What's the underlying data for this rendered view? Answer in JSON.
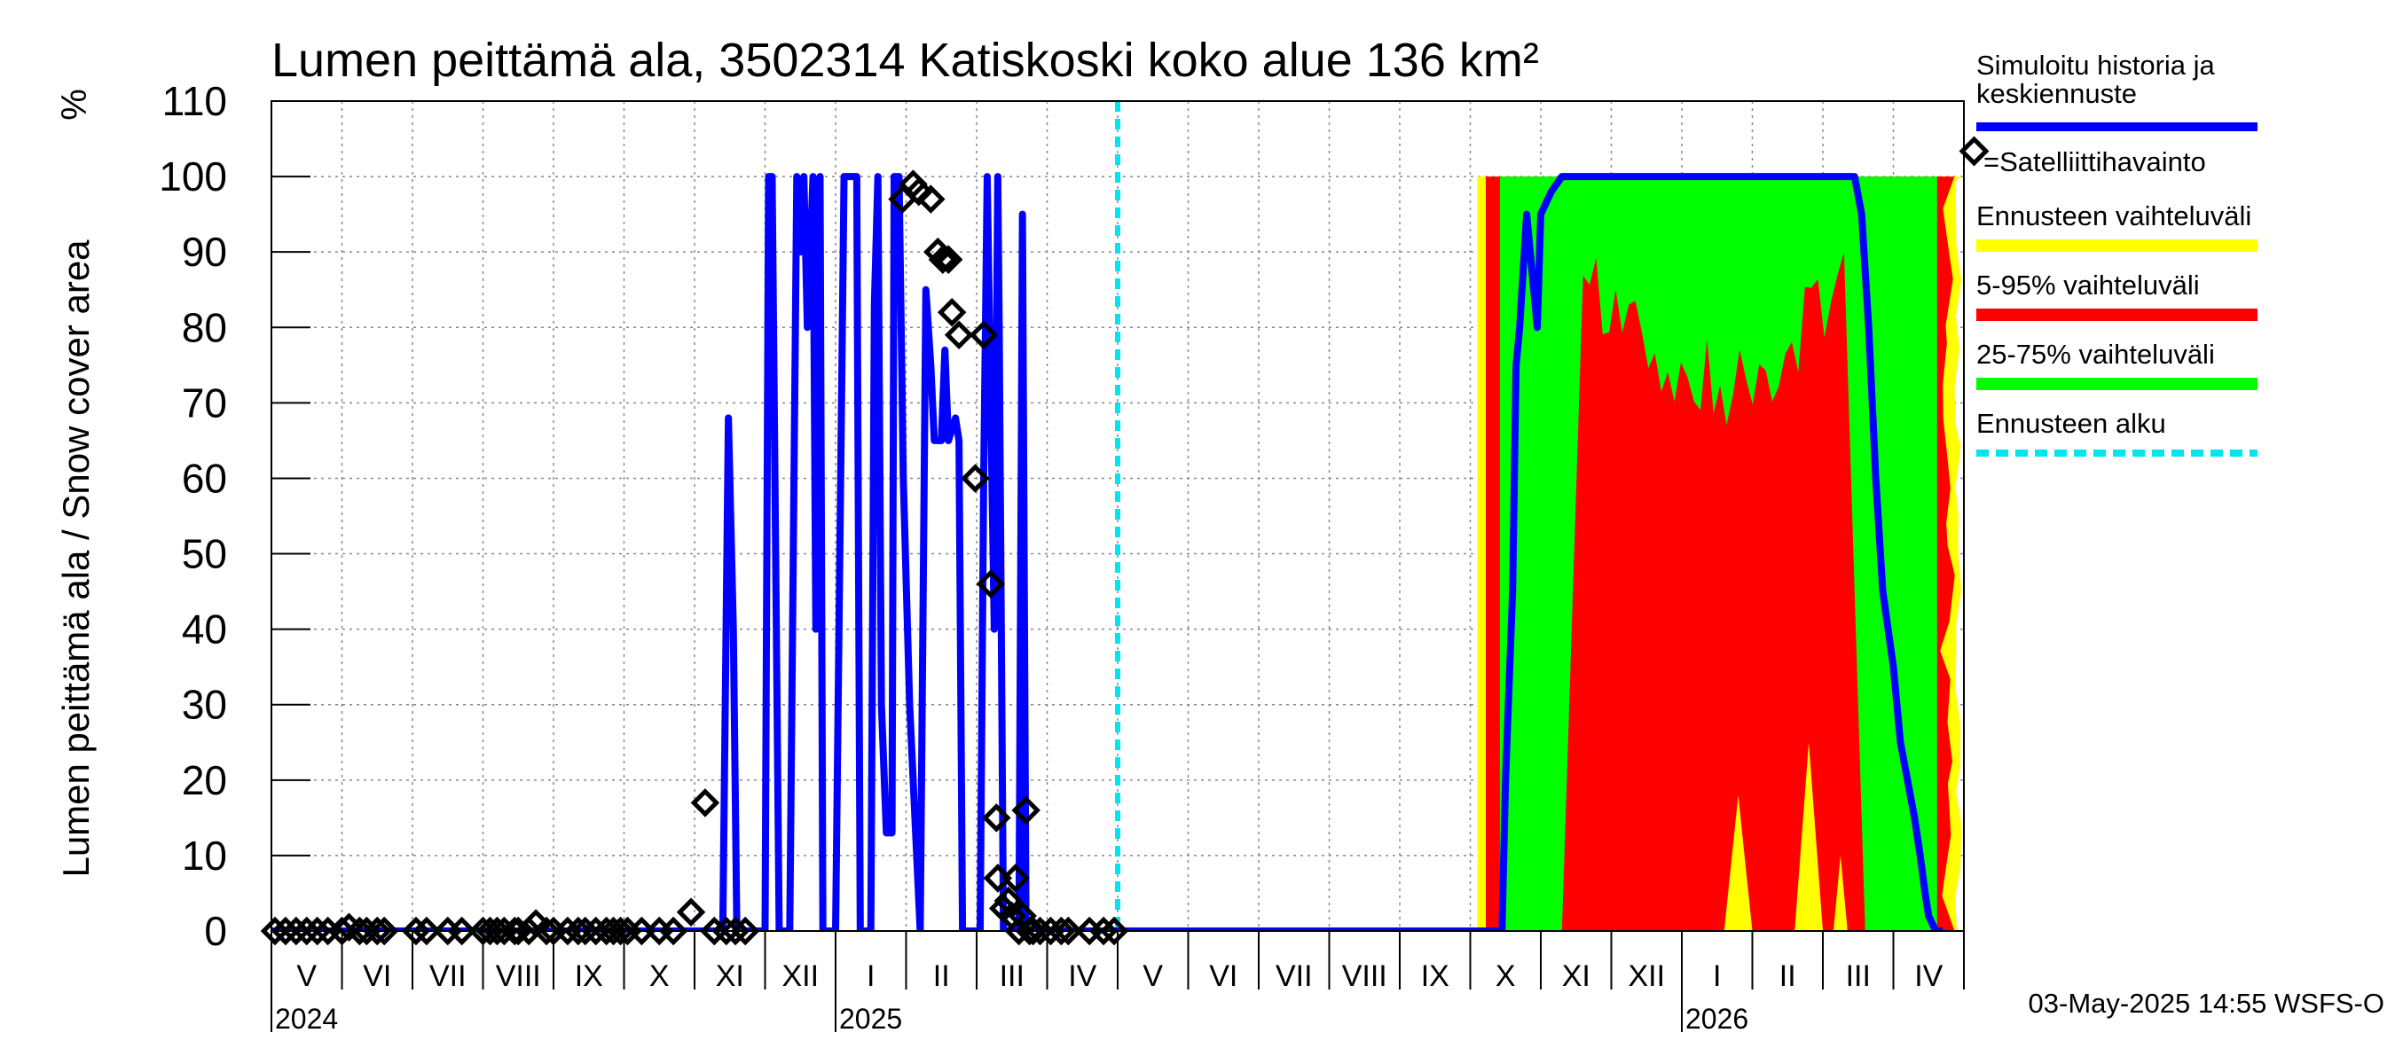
{
  "chart_data": {
    "type": "line",
    "title": "Lumen peittämä ala, 3502314 Katiskoski koko alue 136 km²",
    "ylabel": "Lumen peittämä ala / Snow cover area",
    "yunit": "%",
    "ylim": [
      0,
      110
    ],
    "yticks": [
      "0",
      "10",
      "20",
      "30",
      "40",
      "50",
      "60",
      "70",
      "80",
      "90",
      "100",
      "110"
    ],
    "month_labels": [
      "V",
      "VI",
      "VII",
      "VIII",
      "IX",
      "X",
      "XI",
      "XII",
      "I",
      "II",
      "III",
      "IV",
      "V",
      "VI",
      "VII",
      "VIII",
      "IX",
      "X",
      "XI",
      "XII",
      "I",
      "II",
      "III",
      "IV"
    ],
    "year_labels": [
      {
        "label": "2024",
        "month_index": 0
      },
      {
        "label": "2025",
        "month_index": 8
      },
      {
        "label": "2026",
        "month_index": 20
      }
    ],
    "forecast_start_month": 12,
    "grid": true,
    "legend": {
      "sim": "Simuloitu historia ja keskiennuste",
      "sat": "=Satelliittihavainto",
      "range": "Ennusteen vaihteluväli",
      "p5_95": "5-95% vaihteluväli",
      "p25_75": "25-75% vaihteluväli",
      "fc_start": "Ennusteen alku"
    },
    "timestamp": "03-May-2025 14:55 WSFS-O",
    "colors": {
      "sim": "#0000ff",
      "sat": "#000000",
      "range": "#ffff00",
      "p5_95": "#ff0000",
      "p25_75": "#00ff00",
      "fc_start": "#00e5ee"
    },
    "simulated_series": {
      "x_months": [
        0,
        6.3,
        6.4,
        6.48,
        6.55,
        6.6,
        6.72,
        6.8,
        7.0,
        7.05,
        7.1,
        7.2,
        7.28,
        7.35,
        7.45,
        7.5,
        7.55,
        7.6,
        7.68,
        7.72,
        7.78,
        7.82,
        7.86,
        7.95,
        8.0,
        8.12,
        8.18,
        8.2,
        8.3,
        8.35,
        8.5,
        8.55,
        8.6,
        8.65,
        8.72,
        8.8,
        8.83,
        8.9,
        8.96,
        9.05,
        9.15,
        9.2,
        9.28,
        9.35,
        9.4,
        9.45,
        9.5,
        9.55,
        9.6,
        9.7,
        9.75,
        9.8,
        9.85,
        9.9,
        9.95,
        10.05,
        10.1,
        10.15,
        10.25,
        10.3,
        10.32,
        10.35,
        10.38,
        10.45,
        10.55,
        10.6,
        10.65,
        10.7,
        10.8,
        10.85,
        10.9,
        10.95,
        11.0,
        11.05,
        11.1,
        11.15,
        11.2,
        11.3,
        12.0,
        17.2,
        17.45,
        17.5,
        17.6,
        17.65,
        17.7,
        17.8,
        17.85,
        17.95,
        18.0,
        18.15,
        18.3,
        18.4,
        18.5,
        18.6,
        18.8,
        19.0,
        19.5,
        20.0,
        20.5,
        21.0,
        21.5,
        22.0,
        22.45,
        22.55,
        22.65,
        22.75,
        22.85,
        23.0,
        23.1,
        23.2,
        23.3,
        23.38,
        23.45,
        23.5,
        23.6,
        23.7
      ],
      "y_percent": [
        0,
        0,
        0,
        68,
        40,
        0,
        0,
        0,
        0,
        100,
        100,
        0,
        0,
        0,
        100,
        90,
        100,
        80,
        100,
        40,
        100,
        0,
        0,
        0,
        0,
        100,
        100,
        100,
        100,
        0,
        0,
        83,
        100,
        30,
        13,
        13,
        100,
        100,
        60,
        30,
        10,
        0,
        85,
        75,
        65,
        65,
        65,
        77,
        65,
        68,
        65,
        0,
        0,
        0,
        0,
        0,
        60,
        100,
        40,
        100,
        80,
        40,
        0,
        0,
        0,
        0,
        95,
        0,
        0,
        0,
        0,
        0,
        0,
        0,
        0,
        0,
        0,
        0,
        0,
        0,
        0,
        20,
        45,
        75,
        80,
        95,
        90,
        80,
        95,
        98,
        100,
        100,
        100,
        100,
        100,
        100,
        100,
        100,
        100,
        100,
        100,
        100,
        100,
        95,
        80,
        60,
        45,
        35,
        25,
        20,
        15,
        10,
        5,
        2,
        0,
        0
      ]
    },
    "satellite_observations": {
      "x_months": [
        0.05,
        0.2,
        0.35,
        0.5,
        0.65,
        0.8,
        1.0,
        1.1,
        1.25,
        1.35,
        1.5,
        1.6,
        2.05,
        2.2,
        2.5,
        2.7,
        3.0,
        3.1,
        3.2,
        3.3,
        3.45,
        3.5,
        3.65,
        3.75,
        3.9,
        4.0,
        4.2,
        4.35,
        4.45,
        4.6,
        4.75,
        4.85,
        4.95,
        5.05,
        5.25,
        5.5,
        5.7,
        5.95,
        6.15,
        6.28,
        6.45,
        6.58,
        6.72,
        8.95,
        9.1,
        9.18,
        9.35,
        9.45,
        9.52,
        9.6,
        9.65,
        9.75,
        9.98,
        10.1,
        10.2,
        10.28,
        10.3,
        10.38,
        10.45,
        10.5,
        10.55,
        10.6,
        10.65,
        10.7,
        10.75,
        10.8,
        10.9,
        11.05,
        11.2,
        11.3,
        11.6,
        11.8,
        11.95
      ],
      "y_percent": [
        0,
        0,
        0,
        0,
        0,
        0,
        0,
        0.5,
        0,
        0,
        0,
        0,
        0,
        0,
        0,
        0,
        0,
        0,
        0,
        0,
        0,
        0,
        0,
        1,
        0,
        0,
        0,
        0,
        0,
        0,
        0,
        0,
        0,
        0,
        0,
        0,
        0,
        2.5,
        17,
        0,
        0,
        0,
        0,
        97,
        99,
        98,
        97,
        90,
        89,
        89,
        82,
        79,
        60,
        79,
        46,
        15,
        7,
        3,
        4,
        2,
        7,
        0,
        2,
        16,
        0,
        0,
        0,
        0,
        0,
        0,
        0,
        0,
        0
      ]
    },
    "band_25_75": {
      "start_month": 17.42,
      "end_month": 23.62,
      "max_percent": 100
    },
    "band_5_95": {
      "start_month": 17.22,
      "end_month": 23.88,
      "max_percent": 100
    },
    "band_full": {
      "start_month": 17.1,
      "end_month": 23.97,
      "max_percent": 100
    }
  }
}
